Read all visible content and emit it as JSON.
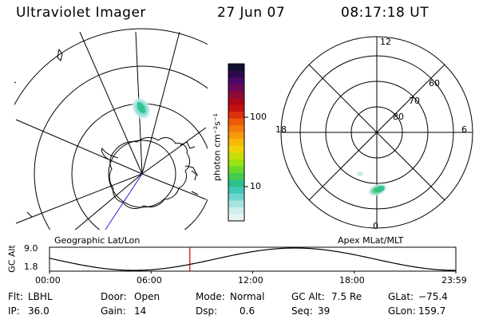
{
  "header": {
    "instrument": "Ultraviolet Imager",
    "date": "27 Jun 07",
    "time": "08:17:18 UT"
  },
  "geo_panel": {
    "caption": "Geographic Lat/Lon"
  },
  "apex_panel": {
    "caption": "Apex MLat/MLT",
    "mlt_labels": [
      "12",
      "18",
      "6",
      "0"
    ],
    "lat_labels": [
      "60",
      "70",
      "80"
    ]
  },
  "colorbar": {
    "unit_label": "photon cm⁻²s⁻¹",
    "ticks": [
      "100",
      "10"
    ],
    "colors": [
      "#101030",
      "#2a0a4a",
      "#4a0a6a",
      "#6a0a5a",
      "#8a0a3a",
      "#a80a1a",
      "#c41010",
      "#dc3010",
      "#ec5a0a",
      "#f47c0a",
      "#f89a0a",
      "#f8b80a",
      "#f0d20a",
      "#c8e00a",
      "#98e214",
      "#6ad82a",
      "#44cc52",
      "#2cc08c",
      "#40c8b4",
      "#70d4cc",
      "#a4e2de",
      "#cfeeee",
      "#e6f4f4"
    ]
  },
  "altitude_strip": {
    "ylabel": "GC Alt",
    "yticks": [
      "9.0",
      "1.8"
    ],
    "xticks": [
      "00:00",
      "06:00",
      "12:00",
      "18:00",
      "23:59"
    ],
    "current_time_hours": 8.29,
    "marker_color": "#d00000"
  },
  "info": {
    "filter_label": "Flt:",
    "filter_value": "LBHL",
    "ip_label": "IP:",
    "ip_value": "36.0",
    "door_label": "Door:",
    "door_value": "Open",
    "gain_label": "Gain:",
    "gain_value": "14",
    "mode_label": "Mode:",
    "mode_value": "Normal",
    "dsp_label": "Dsp:",
    "dsp_value": "0.6",
    "gcalt_label": "GC Alt:",
    "gcalt_value": "7.5 Re",
    "seq_label": "Seq:",
    "seq_value": "39",
    "glat_label": "GLat:",
    "glat_value": "−75.4",
    "glon_label": "GLon:",
    "glon_value": "159.7"
  }
}
